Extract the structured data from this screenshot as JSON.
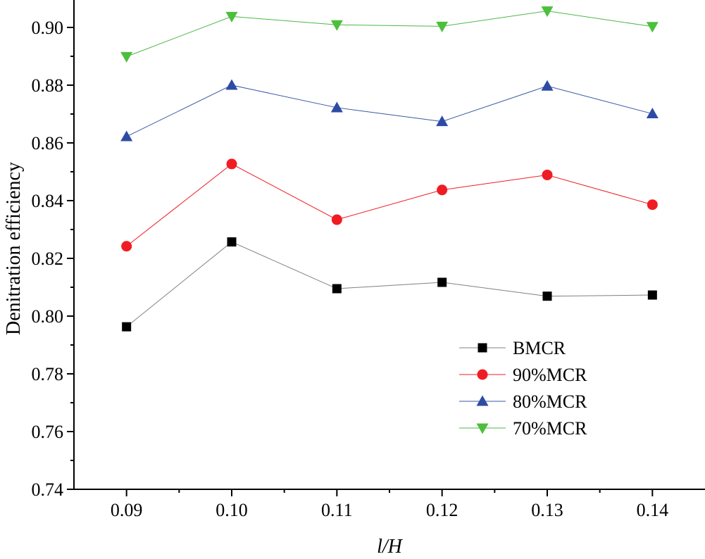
{
  "chart_data": {
    "type": "line",
    "title": "",
    "xlabel": "l/H",
    "ylabel": "Denitration efficiency",
    "x": [
      0.09,
      0.1,
      0.11,
      0.12,
      0.13,
      0.14
    ],
    "x_tick_labels": [
      "0.09",
      "0.10",
      "0.11",
      "0.12",
      "0.13",
      "0.14"
    ],
    "y_ticks": [
      0.74,
      0.76,
      0.78,
      0.8,
      0.82,
      0.84,
      0.86,
      0.88,
      0.9
    ],
    "y_tick_labels": [
      "0.74",
      "0.76",
      "0.78",
      "0.80",
      "0.82",
      "0.84",
      "0.86",
      "0.88",
      "0.90"
    ],
    "xlim": [
      0.085,
      0.145
    ],
    "ylim": [
      0.74,
      0.9095
    ],
    "grid": false,
    "legend_position": "bottom-right",
    "series": [
      {
        "name": "BMCR",
        "marker": "square",
        "line_color": "#808080",
        "marker_color": "#000000",
        "values": [
          0.7963,
          0.8257,
          0.8095,
          0.8117,
          0.8069,
          0.8073
        ]
      },
      {
        "name": "90%MCR",
        "marker": "circle",
        "line_color": "#f01c24",
        "marker_color": "#f01c24",
        "values": [
          0.8242,
          0.8527,
          0.8334,
          0.8437,
          0.8489,
          0.8386
        ]
      },
      {
        "name": "80%MCR",
        "marker": "triangle-up",
        "line_color": "#3a57a6",
        "marker_color": "#2e4ba4",
        "values": [
          0.8622,
          0.88,
          0.8722,
          0.8674,
          0.8797,
          0.8701
        ]
      },
      {
        "name": "70%MCR",
        "marker": "triangle-down",
        "line_color": "#4cb74c",
        "marker_color": "#4cbf3c",
        "values": [
          0.8899,
          0.9038,
          0.9009,
          0.9004,
          0.9057,
          0.9003
        ]
      }
    ]
  }
}
